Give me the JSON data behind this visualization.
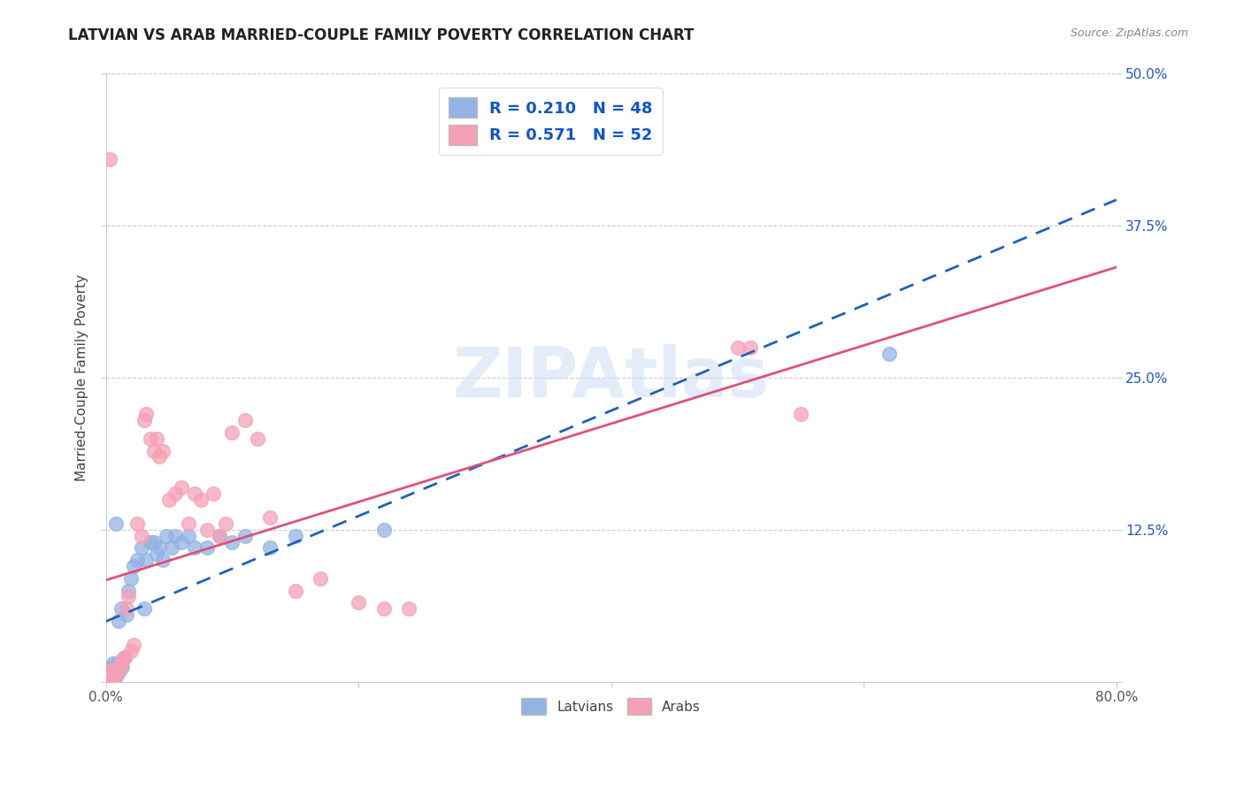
{
  "title": "LATVIAN VS ARAB MARRIED-COUPLE FAMILY POVERTY CORRELATION CHART",
  "source": "Source: ZipAtlas.com",
  "ylabel": "Married-Couple Family Poverty",
  "xlim": [
    0.0,
    0.8
  ],
  "ylim": [
    0.0,
    0.5
  ],
  "watermark": "ZIPAtlas",
  "latvian_color": "#92b4e3",
  "arab_color": "#f5a0b5",
  "latvian_line_color": "#2060c0",
  "arab_line_color": "#e0507a",
  "latvian_R": 0.21,
  "latvian_N": 48,
  "arab_R": 0.571,
  "arab_N": 52,
  "lat_x": [
    0.001,
    0.002,
    0.002,
    0.003,
    0.003,
    0.004,
    0.004,
    0.005,
    0.005,
    0.006,
    0.006,
    0.007,
    0.007,
    0.008,
    0.008,
    0.009,
    0.01,
    0.01,
    0.012,
    0.013,
    0.015,
    0.016,
    0.018,
    0.02,
    0.022,
    0.025,
    0.028,
    0.03,
    0.032,
    0.035,
    0.038,
    0.04,
    0.042,
    0.045,
    0.048,
    0.052,
    0.055,
    0.06,
    0.065,
    0.07,
    0.08,
    0.09,
    0.1,
    0.11,
    0.13,
    0.15,
    0.22,
    0.62
  ],
  "lat_y": [
    0.005,
    0.004,
    0.008,
    0.003,
    0.007,
    0.01,
    0.006,
    0.012,
    0.005,
    0.008,
    0.015,
    0.01,
    0.004,
    0.13,
    0.012,
    0.015,
    0.008,
    0.05,
    0.06,
    0.012,
    0.02,
    0.055,
    0.075,
    0.085,
    0.095,
    0.1,
    0.11,
    0.06,
    0.1,
    0.115,
    0.115,
    0.105,
    0.11,
    0.1,
    0.12,
    0.11,
    0.12,
    0.115,
    0.12,
    0.11,
    0.11,
    0.12,
    0.115,
    0.12,
    0.11,
    0.12,
    0.125,
    0.27
  ],
  "arab_x": [
    0.001,
    0.002,
    0.003,
    0.003,
    0.004,
    0.005,
    0.005,
    0.006,
    0.007,
    0.008,
    0.009,
    0.01,
    0.011,
    0.012,
    0.013,
    0.015,
    0.016,
    0.018,
    0.02,
    0.022,
    0.025,
    0.028,
    0.03,
    0.032,
    0.035,
    0.038,
    0.04,
    0.042,
    0.045,
    0.05,
    0.055,
    0.06,
    0.065,
    0.07,
    0.075,
    0.08,
    0.085,
    0.09,
    0.095,
    0.1,
    0.11,
    0.12,
    0.13,
    0.15,
    0.17,
    0.2,
    0.22,
    0.24,
    0.5,
    0.51,
    0.55,
    0.003
  ],
  "arab_y": [
    0.005,
    0.003,
    0.007,
    0.004,
    0.008,
    0.01,
    0.003,
    0.005,
    0.008,
    0.004,
    0.009,
    0.01,
    0.012,
    0.015,
    0.018,
    0.02,
    0.06,
    0.07,
    0.025,
    0.03,
    0.13,
    0.12,
    0.215,
    0.22,
    0.2,
    0.19,
    0.2,
    0.185,
    0.19,
    0.15,
    0.155,
    0.16,
    0.13,
    0.155,
    0.15,
    0.125,
    0.155,
    0.12,
    0.13,
    0.205,
    0.215,
    0.2,
    0.135,
    0.075,
    0.085,
    0.065,
    0.06,
    0.06,
    0.275,
    0.275,
    0.22,
    0.43
  ]
}
